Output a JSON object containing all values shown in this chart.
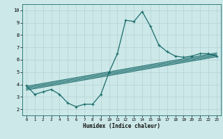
{
  "xlabel": "Humidex (Indice chaleur)",
  "bg_color": "#cce8e8",
  "grid_color": "#b8d4d4",
  "line_color": "#1a6b6b",
  "xlim": [
    -0.5,
    23.5
  ],
  "ylim": [
    1.5,
    10.5
  ],
  "xticks": [
    0,
    1,
    2,
    3,
    4,
    5,
    6,
    7,
    8,
    9,
    10,
    11,
    12,
    13,
    14,
    15,
    16,
    17,
    18,
    19,
    20,
    21,
    22,
    23
  ],
  "yticks": [
    2,
    3,
    4,
    5,
    6,
    7,
    8,
    9,
    10
  ],
  "main_x": [
    0,
    1,
    2,
    3,
    4,
    5,
    6,
    7,
    8,
    9,
    10,
    11,
    12,
    13,
    14,
    15,
    16,
    17,
    18,
    19,
    20,
    21,
    22,
    23
  ],
  "main_y": [
    3.9,
    3.2,
    3.4,
    3.6,
    3.2,
    2.5,
    2.2,
    2.4,
    2.4,
    3.2,
    5.0,
    6.5,
    9.2,
    9.1,
    9.9,
    8.7,
    7.2,
    6.65,
    6.3,
    6.2,
    6.3,
    6.5,
    6.5,
    6.3
  ],
  "line1_x": [
    0,
    23
  ],
  "line1_y": [
    3.55,
    6.25
  ],
  "line2_x": [
    0,
    23
  ],
  "line2_y": [
    3.65,
    6.35
  ],
  "line3_x": [
    0,
    23
  ],
  "line3_y": [
    3.75,
    6.45
  ],
  "line4_x": [
    0,
    23
  ],
  "line4_y": [
    3.85,
    6.55
  ]
}
